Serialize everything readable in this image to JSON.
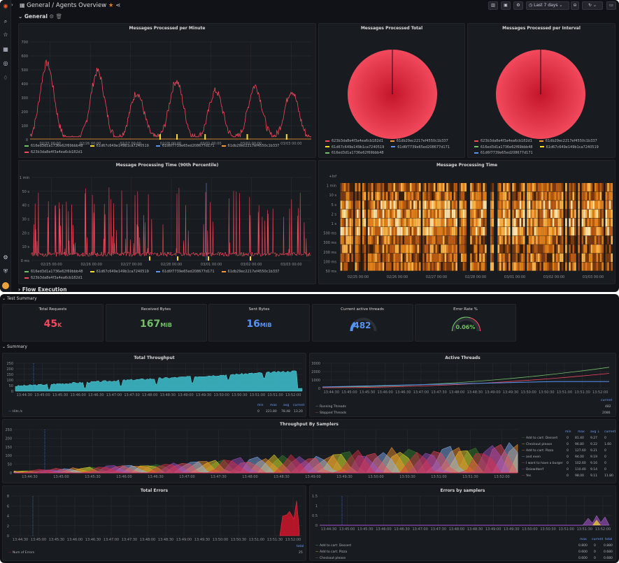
{
  "nav": {
    "icons": [
      "grafana-logo-icon",
      "search-icon",
      "star-icon",
      "dashboards-icon",
      "explore-icon",
      "alerting-icon",
      "settings-icon",
      "shield-icon",
      "avatar"
    ]
  },
  "topbar": {
    "breadcrumb": "General / Agents Overview",
    "time_range": "Last 7 days"
  },
  "rows": {
    "general": "General",
    "flow_execution": "Flow Execution",
    "test_summary": "Test Summary",
    "summary": "Summary"
  },
  "panels": {
    "mpm": {
      "title": "Messages Processed per Minute",
      "y_ticks": [
        "700",
        "600",
        "500",
        "400",
        "300",
        "200",
        "100",
        "0"
      ],
      "x_ticks": [
        "02/25 00:00",
        "02/26 00:00",
        "02/27 00:00",
        "02/28 00:00",
        "03/01 00:00",
        "03/02 00:00",
        "03/03 00:00"
      ],
      "legend": [
        "616ed3d1a1736e62f69bbb48",
        "61d67c649e149b1ca7240519",
        "61d6f7739e65ed208677d171",
        "61db29ec2217ef4550c1b337",
        "623b3da8e4f3a4ea6cb182d1"
      ]
    },
    "total": {
      "title": "Messages Processed Total",
      "legend": [
        "623b3da8e4f3a4ea6cb182d1",
        "61db29ec2217ef4550c1b337",
        "61d67c649e149b1ca7240519",
        "61d6f7739e65ed208677d171",
        "616ed3d1a1736e62f69bbb48"
      ]
    },
    "interval": {
      "title": "Messages Processed per Interval",
      "legend": [
        "623b3da8e4f3a4ea6cb182d1",
        "61db29ec2217ef4550c1b337",
        "616ed3d1a1736e62f69bbb48",
        "61d67c649e149b1ca7240519",
        "61d6f7739e65ed208677d171"
      ]
    },
    "p90": {
      "title": "Message Processing Time (90th Percentile)",
      "y_ticks": [
        "1 min",
        "50 s",
        "40 s",
        "30 s",
        "20 s",
        "10 s",
        "0 ms"
      ],
      "x_ticks": [
        "02/25 00:00",
        "02/26 00:00",
        "02/27 00:00",
        "02/28 00:00",
        "03/01 00:00",
        "03/02 00:00",
        "03/03 00:00"
      ],
      "legend": [
        "616ed3d1a1736e62f69bbb48",
        "61d67c649e149b1ca7240519",
        "61d6f7739e65ed208677d171",
        "61db29ec2217ef4550c1b337",
        "623b3da8e4f3a4ea6cb182d1"
      ]
    },
    "heat": {
      "title": "Message Processing Time",
      "y_ticks": [
        "+Inf",
        "1 min",
        "10 s",
        "5 s",
        "2 s",
        "1 s",
        "500 ms",
        "300 ms",
        "200 ms",
        "100 ms",
        "50 ms"
      ],
      "x_ticks": [
        "02/25 00:00",
        "02/26 00:00",
        "02/27 00:00",
        "02/28 00:00",
        "03/01 00:00",
        "03/02 00:00",
        "03/03 00:00"
      ]
    },
    "stats": [
      {
        "title": "Total Requests",
        "value": "45",
        "unit": "K",
        "color": "#f2495c"
      },
      {
        "title": "Received Bytes",
        "value": "167",
        "unit": "MiB",
        "color": "#73bf69"
      },
      {
        "title": "Sent Bytes",
        "value": "16",
        "unit": "MiB",
        "color": "#5794f2"
      },
      {
        "title": "Current active threads",
        "value": "482",
        "unit": "",
        "color": "#5794f2"
      },
      {
        "title": "Error Rate %",
        "value": "0.06%",
        "unit": "",
        "color": "#73bf69"
      }
    ],
    "throughput": {
      "title": "Total Throughput",
      "y_ticks": [
        "250",
        "200",
        "150",
        "100",
        "50",
        "0"
      ],
      "x_ticks": [
        "13:44:30",
        "13:45:00",
        "13:45:30",
        "13:46:00",
        "13:46:30",
        "13:47:00",
        "13:47:30",
        "13:48:00",
        "13:48:30",
        "13:49:00",
        "13:49:30",
        "13:50:00",
        "13:50:30",
        "13:51:00",
        "13:51:30",
        "13:52:00"
      ],
      "legend_headers": [
        "min",
        "max",
        "avg",
        "current"
      ],
      "legend_row": {
        "name": "Hits /s",
        "min": "0",
        "max": "221.80",
        "avg": "78.48",
        "current": "13.20"
      }
    },
    "active": {
      "title": "Active Threads",
      "y_ticks": [
        "3000",
        "2000",
        "1000",
        "0"
      ],
      "x_ticks": [
        "13:44:30",
        "13:45:00",
        "13:45:30",
        "13:46:00",
        "13:46:30",
        "13:47:00",
        "13:47:30",
        "13:48:00",
        "13:48:30",
        "13:49:00",
        "13:49:30",
        "13:50:00",
        "13:50:30",
        "13:51:00",
        "13:51:30",
        "13:52:00"
      ],
      "legend_header": "current",
      "legend": [
        {
          "name": "Running Threads",
          "current": "482"
        },
        {
          "name": "Stopped Threads",
          "current": "2086"
        }
      ]
    },
    "samplers": {
      "title": "Throughput By Samplers",
      "y_ticks": [
        "250",
        "200",
        "150",
        "100",
        "50",
        "0"
      ],
      "x_ticks": [
        "13:44:30",
        "13:45:00",
        "13:45:30",
        "13:46:00",
        "13:46:30",
        "13:47:00",
        "13:47:30",
        "13:48:00",
        "13:48:30",
        "13:49:00",
        "13:49:30",
        "13:50:00",
        "13:50:30",
        "13:51:00",
        "13:51:30",
        "13:52:00"
      ],
      "legend_headers": [
        "min",
        "max",
        "avg ↓",
        "current"
      ],
      "legend": [
        {
          "name": "Add to cart: Dessert",
          "min": "0",
          "max": "81.40",
          "avg": "9.27",
          "current": "0"
        },
        {
          "name": "Checkout please",
          "min": "0",
          "max": "96.80",
          "avg": "9.22",
          "current": "1.60"
        },
        {
          "name": "Add to cart: Pizza",
          "min": "0",
          "max": "127.60",
          "avg": "9.21",
          "current": "0"
        },
        {
          "name": "and even",
          "min": "0",
          "max": "94.00",
          "avg": "9.19",
          "current": "0"
        },
        {
          "name": "I want to have a burger",
          "min": "0",
          "max": "102.60",
          "avg": "9.16",
          "current": "0"
        },
        {
          "name": "Dziewitkerf",
          "min": "0",
          "max": "110.40",
          "avg": "9.14",
          "current": "0"
        },
        {
          "name": "Yes",
          "min": "0",
          "max": "98.00",
          "avg": "9.11",
          "current": "11.80"
        }
      ]
    },
    "errors": {
      "title": "Total Errors",
      "y_ticks": [
        "8",
        "6",
        "4",
        "2",
        "0"
      ],
      "x_ticks": [
        "13:44:30",
        "13:45:00",
        "13:45:30",
        "13:46:00",
        "13:46:30",
        "13:47:00",
        "13:47:30",
        "13:48:00",
        "13:48:30",
        "13:49:00",
        "13:49:30",
        "13:50:00",
        "13:50:30",
        "13:51:00",
        "13:51:30",
        "13:52:00"
      ],
      "legend_header": "total",
      "legend": [
        {
          "name": "Num of Errors",
          "total": "25"
        }
      ]
    },
    "errors_samplers": {
      "title": "Errors by samplers",
      "y_ticks": [
        "1.5",
        "1",
        "0.5",
        "0"
      ],
      "x_ticks": [
        "13:44:30",
        "13:45:00",
        "13:45:30",
        "13:46:00",
        "13:46:30",
        "13:47:00",
        "13:47:30",
        "13:48:00",
        "13:48:30",
        "13:49:00",
        "13:49:30",
        "13:50:00",
        "13:50:30",
        "13:51:00",
        "13:51:30",
        "13:52:00"
      ],
      "legend_headers": [
        "max",
        "current",
        "total"
      ],
      "legend": [
        {
          "name": "Add to cart: Dessert",
          "max": "0.800",
          "current": "0",
          "total": "0.880"
        },
        {
          "name": "Add to cart: Pizza",
          "max": "0.600",
          "current": "0",
          "total": "0.680"
        },
        {
          "name": "Checkout please",
          "max": "0.600",
          "current": "0",
          "total": "0.680"
        }
      ]
    }
  },
  "colors": {
    "green": "#73bf69",
    "yellow": "#fade2a",
    "blue": "#5794f2",
    "orange": "#ff9830",
    "red": "#f2495c",
    "pink": "#f2495c"
  }
}
